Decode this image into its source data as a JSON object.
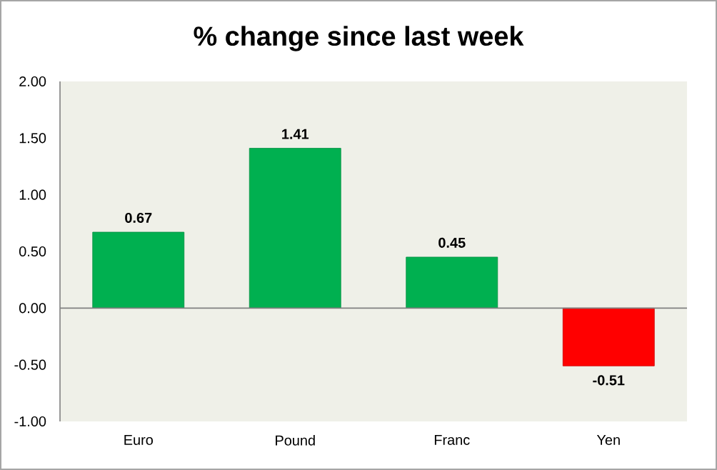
{
  "chart_data": {
    "type": "bar",
    "title": "% change since last week",
    "categories": [
      "Euro",
      "Pound",
      "Franc",
      "Yen"
    ],
    "values": [
      0.67,
      1.41,
      0.45,
      -0.51
    ],
    "colors": [
      "#00b050",
      "#00b050",
      "#00b050",
      "#ff0000"
    ],
    "ylim": [
      -1,
      2
    ],
    "yticks": [
      {
        "value": -1,
        "label": "-1.00"
      },
      {
        "value": -0.5,
        "label": "-0.50"
      },
      {
        "value": 0,
        "label": "0.00"
      },
      {
        "value": 0.5,
        "label": "0.50"
      },
      {
        "value": 1,
        "label": "1.00"
      },
      {
        "value": 1.5,
        "label": "1.50"
      },
      {
        "value": 2,
        "label": "2.00"
      }
    ],
    "data_labels": true
  }
}
